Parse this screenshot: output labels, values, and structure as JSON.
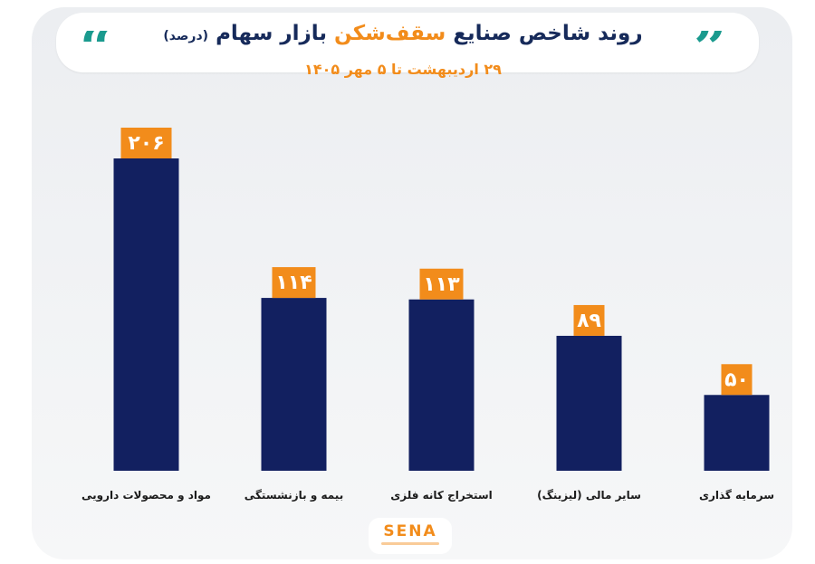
{
  "header": {
    "title_part1": "روند شاخص صنایع",
    "title_highlight": "سقف‌شکن",
    "title_part2": "بازار سهام",
    "title_unit": "(درصد)",
    "subtitle": "۲۹ اردیبهشت تا ۵ مهر ۱۴۰۵",
    "quote_open": "“",
    "quote_close": "”"
  },
  "logo": {
    "text": "SENA"
  },
  "colors": {
    "bar": "#122060",
    "label_bg": "#f28c1b",
    "label_text": "#ffffff",
    "title": "#162a5a",
    "accent": "#f28c1b",
    "quote": "#1a9a8e"
  },
  "chart_data": {
    "type": "bar",
    "categories": [
      "مواد و محصولات دارویی",
      "بیمه و بازنشستگی",
      "استخراج کانه فلزی",
      "سایر مالی (لیزینگ)",
      "سرمایه گذاری"
    ],
    "values": [
      206,
      114,
      113,
      89,
      50
    ],
    "value_labels": [
      "۲۰۶",
      "۱۱۴",
      "۱۱۳",
      "۸۹",
      "۵۰"
    ],
    "ylim": [
      0,
      206
    ],
    "grid": false,
    "legend": "none"
  }
}
